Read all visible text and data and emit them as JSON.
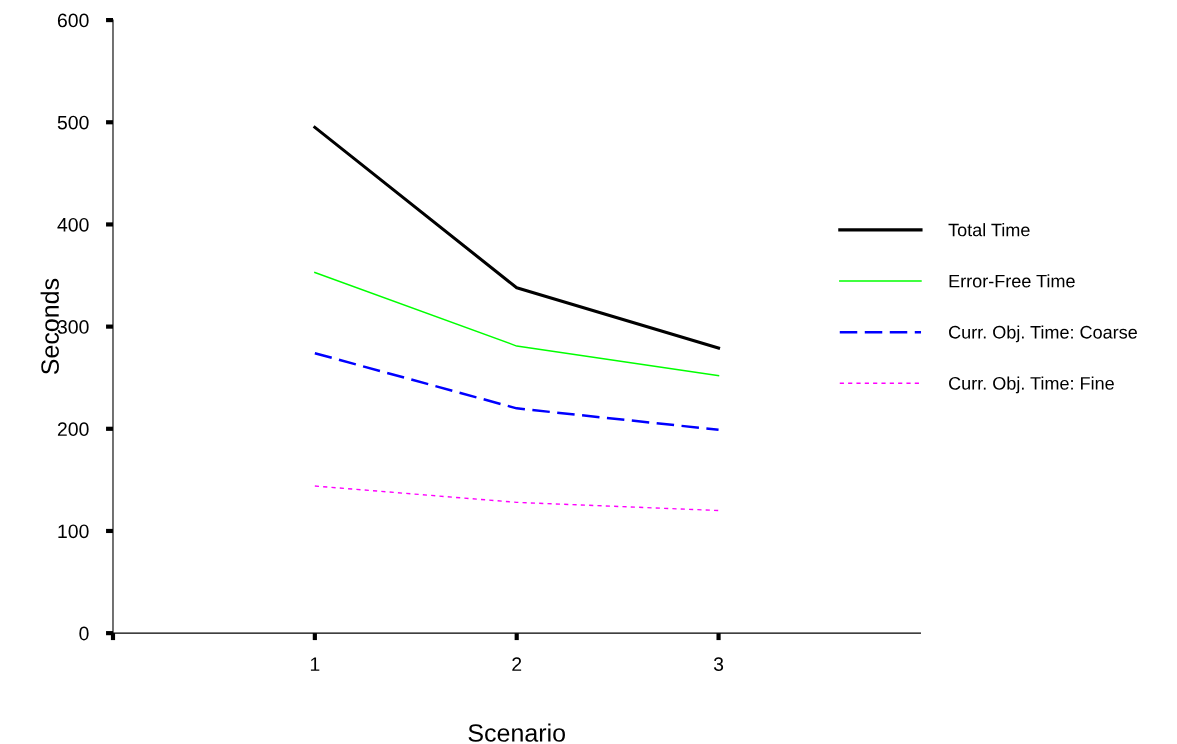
{
  "chart_data": {
    "type": "line",
    "xlabel": "Scenario",
    "ylabel": "Seconds",
    "x": [
      1,
      2,
      3
    ],
    "xlim": [
      0,
      4
    ],
    "xticks": [
      {
        "value": 0,
        "label": null
      },
      1,
      2,
      3
    ],
    "ylim": [
      0,
      600
    ],
    "yticks": [
      0,
      100,
      200,
      300,
      400,
      500,
      600
    ],
    "grid": false,
    "legend": "right",
    "marker": "none",
    "series": [
      {
        "name": "Total Time",
        "color": "#000000",
        "values": [
          495,
          338,
          279
        ],
        "line_style": "solid"
      },
      {
        "name": "Error-Free Time",
        "color": "#00ff00",
        "values": [
          353,
          281,
          252
        ],
        "line_style": "solid"
      },
      {
        "name": "Curr. Obj. Time: Coarse",
        "color": "#0000ff",
        "values": [
          274,
          220,
          199
        ],
        "line_style": "dashed"
      },
      {
        "name": "Curr. Obj. Time: Fine",
        "color": "#ff00ff",
        "values": [
          144,
          128,
          120
        ],
        "line_style": "dotted"
      }
    ]
  }
}
